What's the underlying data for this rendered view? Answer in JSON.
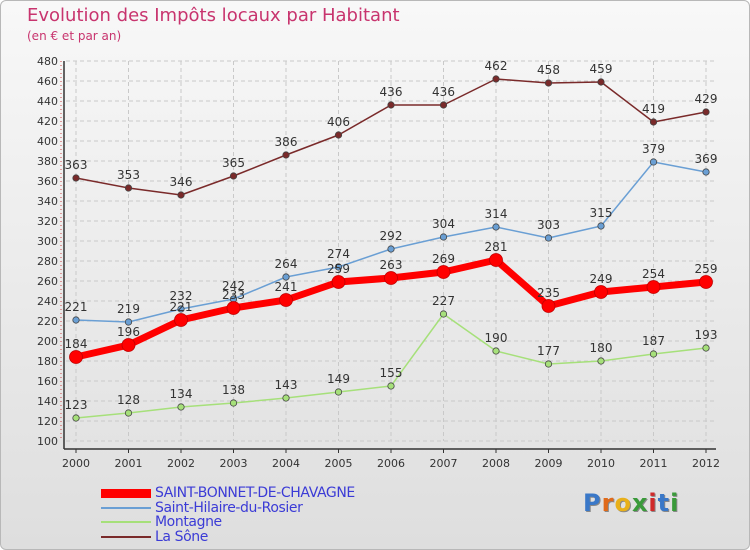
{
  "title": "Evolution des Impôts locaux par Habitant",
  "subtitle": "(en € et par an)",
  "logo": "Proxiti",
  "colors": {
    "background_top": "#f8f8f8",
    "background_bottom": "#dedede",
    "title": "#c8346e",
    "grid": "#c9c9c9",
    "legend_text": "#3b3bd6"
  },
  "chart_data": {
    "type": "line",
    "title": "Evolution des Impôts locaux par Habitant",
    "subtitle": "(en € et par an)",
    "x": [
      "2000",
      "2001",
      "2002",
      "2003",
      "2004",
      "2005",
      "2006",
      "2007",
      "2008",
      "2009",
      "2010",
      "2011",
      "2012"
    ],
    "ylim": [
      100,
      480
    ],
    "yticks": [
      100,
      120,
      140,
      160,
      180,
      200,
      220,
      240,
      260,
      280,
      300,
      320,
      340,
      360,
      380,
      400,
      420,
      440,
      460,
      480
    ],
    "grid": true,
    "legend_position": "bottom-left",
    "series": [
      {
        "name": "SAINT-BONNET-DE-CHAVAGNE",
        "color": "#ff0000",
        "values": [
          184,
          196,
          221,
          233,
          241,
          259,
          263,
          269,
          281,
          235,
          249,
          254,
          259
        ]
      },
      {
        "name": "Saint-Hilaire-du-Rosier",
        "color": "#6a9fd4",
        "values": [
          221,
          219,
          232,
          242,
          264,
          274,
          292,
          304,
          314,
          303,
          315,
          379,
          369
        ]
      },
      {
        "name": "Montagne",
        "color": "#a6e07a",
        "values": [
          123,
          128,
          134,
          138,
          143,
          149,
          155,
          227,
          190,
          177,
          180,
          187,
          193
        ]
      },
      {
        "name": "La Sône",
        "color": "#7a2a2a",
        "values": [
          363,
          353,
          346,
          365,
          386,
          406,
          436,
          436,
          462,
          458,
          459,
          419,
          429
        ]
      }
    ]
  }
}
